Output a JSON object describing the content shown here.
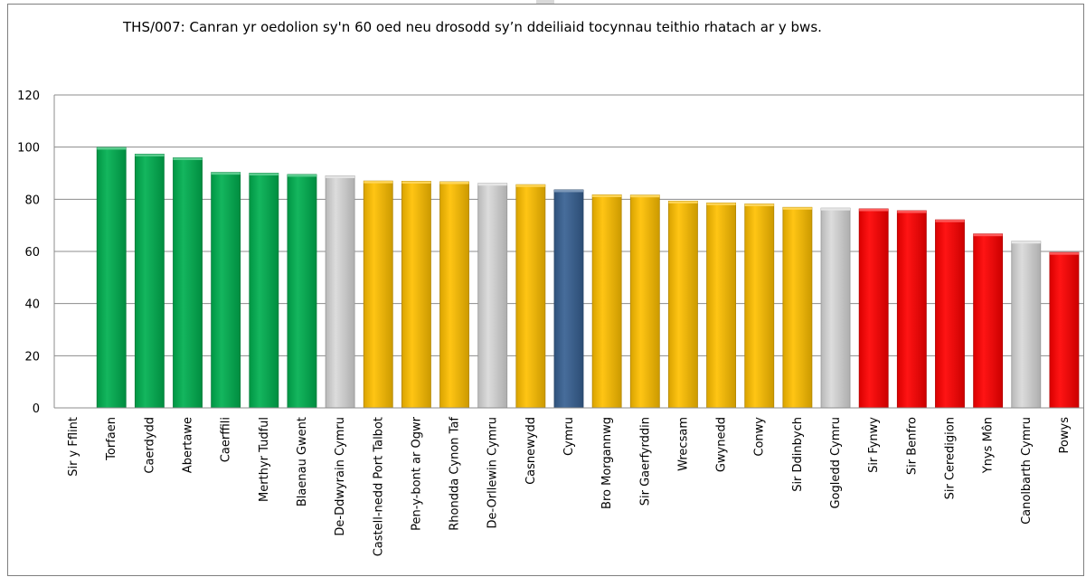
{
  "chart_data": {
    "type": "bar",
    "title": "THS/007: Canran yr oedolion sy'n 60 oed neu drosodd sy’n ddeiliaid tocynnau teithio rhatach ar y bws.",
    "xlabel": "",
    "ylabel": "",
    "ylim": [
      0,
      120
    ],
    "yticks": [
      0,
      20,
      40,
      60,
      80,
      100,
      120
    ],
    "grid": true,
    "legend": "none",
    "categories": [
      "Sir y Fflint",
      "Torfaen",
      "Caerdydd",
      "Abertawe",
      "Caerffili",
      "Merthyr Tudful",
      "Blaenau Gwent",
      "De-Ddwyrain Cymru",
      "Castell-nedd Port Talbot",
      "Pen-y-bont ar Ogwr",
      "Rhondda Cynon Taf",
      "De-Orllewin Cymru",
      "Casnewydd",
      "Cymru",
      "Bro Morgannwg",
      "Sir Gaerfyrddin",
      "Wrecsam",
      "Gwynedd",
      "Conwy",
      "Sir Ddinbych",
      "Gogledd Cymru",
      "Sir Fynwy",
      "Sir Benfro",
      "Sir Ceredigion",
      "Ynys Môn",
      "Canolbarth Cymru",
      "Powys"
    ],
    "values": [
      null,
      99.9,
      97.3,
      95.9,
      90.3,
      90.0,
      89.5,
      89.0,
      87.0,
      86.9,
      86.7,
      86.1,
      85.6,
      83.6,
      81.7,
      81.6,
      79.3,
      78.6,
      78.2,
      76.9,
      76.6,
      76.3,
      75.6,
      72.1,
      66.7,
      63.9,
      59.6
    ],
    "colors": [
      "#c0c0c0",
      "#00b050",
      "#00b050",
      "#00b050",
      "#00b050",
      "#00b050",
      "#00b050",
      "#d9d9d9",
      "#ffc000",
      "#ffc000",
      "#ffc000",
      "#d9d9d9",
      "#ffc000",
      "#376092",
      "#ffc000",
      "#ffc000",
      "#ffc000",
      "#ffc000",
      "#ffc000",
      "#ffc000",
      "#d9d9d9",
      "#ff0000",
      "#ff0000",
      "#ff0000",
      "#ff0000",
      "#d9d9d9",
      "#ff0000"
    ]
  }
}
